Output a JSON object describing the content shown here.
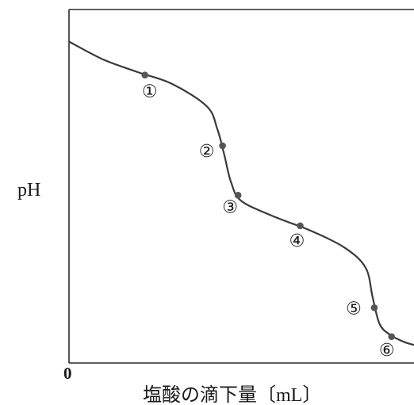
{
  "chart_data": {
    "type": "line",
    "title": "",
    "xlabel": "塩酸の滴下量〔mL〕",
    "ylabel": "pH",
    "x_tick_labels": [
      "0"
    ],
    "y_tick_labels": [],
    "grid": false,
    "legend": "none",
    "series": [
      {
        "x": [
          0,
          10,
          20,
          30,
          40,
          43,
          45,
          47,
          50,
          60,
          70,
          80,
          86,
          88,
          90,
          93,
          97,
          100
        ],
        "y": [
          90,
          84.4,
          80.5,
          76.8,
          69.8,
          62.8,
          54.8,
          46.2,
          40.4,
          35.3,
          31.2,
          25.8,
          19.6,
          10.5,
          2.2,
          -1.2,
          -3.4,
          -4.4
        ]
      }
    ],
    "points": [
      {
        "label": "①",
        "x": 22,
        "y": 79.6
      },
      {
        "label": "②",
        "x": 44.5,
        "y": 57.6
      },
      {
        "label": "③",
        "x": 49,
        "y": 42.2
      },
      {
        "label": "④",
        "x": 67,
        "y": 32.7
      },
      {
        "label": "⑤",
        "x": 88.5,
        "y": 7.2
      },
      {
        "label": "⑥",
        "x": 93.5,
        "y": -1.8
      }
    ],
    "xlim": [
      0,
      100
    ],
    "ylim": [
      -10,
      100
    ],
    "colors": {
      "line": "#3a3a3a",
      "point": "#555555",
      "axis": "#2a2a2a"
    }
  }
}
